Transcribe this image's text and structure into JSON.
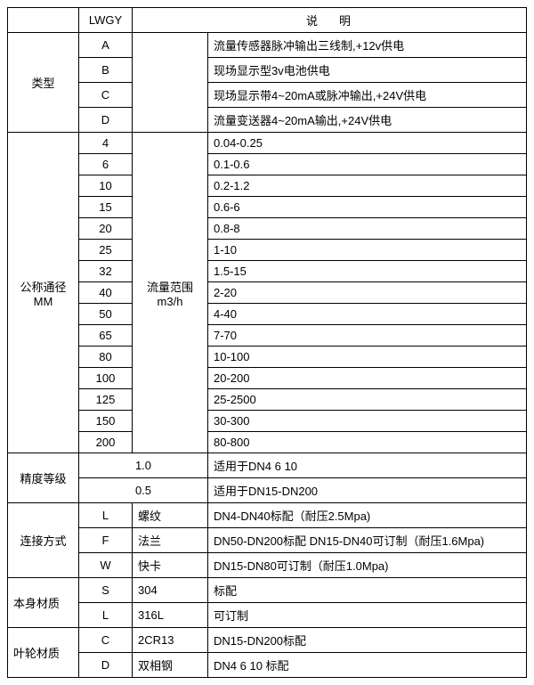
{
  "header": {
    "lwgy": "LWGY",
    "desc": "说明"
  },
  "type": {
    "label": "类型",
    "rows": [
      {
        "code": "A",
        "desc": "流量传感器脉冲输出三线制,+12v供电"
      },
      {
        "code": "B",
        "desc": "现场显示型3v电池供电"
      },
      {
        "code": "C",
        "desc": "现场显示带4~20mA或脉冲输出,+24V供电"
      },
      {
        "code": "D",
        "desc": "流量变送器4~20mA输出,+24V供电"
      }
    ]
  },
  "dn": {
    "label": "公称通径",
    "label2": "MM",
    "range_label": "流量范围",
    "range_unit": "m3/h",
    "rows": [
      {
        "code": "4",
        "range": "0.04-0.25"
      },
      {
        "code": "6",
        "range": "0.1-0.6"
      },
      {
        "code": "10",
        "range": "0.2-1.2"
      },
      {
        "code": "15",
        "range": "0.6-6"
      },
      {
        "code": "20",
        "range": "0.8-8"
      },
      {
        "code": "25",
        "range": "1-10"
      },
      {
        "code": "32",
        "range": "1.5-15"
      },
      {
        "code": "40",
        "range": "2-20"
      },
      {
        "code": "50",
        "range": "4-40"
      },
      {
        "code": "65",
        "range": "7-70"
      },
      {
        "code": "80",
        "range": "10-100"
      },
      {
        "code": "100",
        "range": "20-200"
      },
      {
        "code": "125",
        "range": "25-2500"
      },
      {
        "code": "150",
        "range": "30-300"
      },
      {
        "code": "200",
        "range": "80-800"
      }
    ]
  },
  "accuracy": {
    "label": "精度等级",
    "rows": [
      {
        "val": "1.0",
        "desc": "适用于DN4 6 10"
      },
      {
        "val": "0.5",
        "desc": "适用于DN15-DN200"
      }
    ]
  },
  "connection": {
    "label": "连接方式",
    "rows": [
      {
        "code": "L",
        "name": "螺纹",
        "desc": "DN4-DN40标配（耐压2.5Mpa)"
      },
      {
        "code": "F",
        "name": "法兰",
        "desc": "DN50-DN200标配 DN15-DN40可订制（耐压1.6Mpa)"
      },
      {
        "code": "W",
        "name": "快卡",
        "desc": "DN15-DN80可订制（耐压1.0Mpa)"
      }
    ]
  },
  "body_material": {
    "label": "本身材质",
    "rows": [
      {
        "code": "S",
        "name": "304",
        "desc": "标配"
      },
      {
        "code": "L",
        "name": "316L",
        "desc": "可订制"
      }
    ]
  },
  "impeller_material": {
    "label": "叶轮材质",
    "rows": [
      {
        "code": "C",
        "name": "2CR13",
        "desc": "DN15-DN200标配"
      },
      {
        "code": "D",
        "name": "双相钢",
        "desc": "DN4 6 10 标配"
      }
    ]
  }
}
